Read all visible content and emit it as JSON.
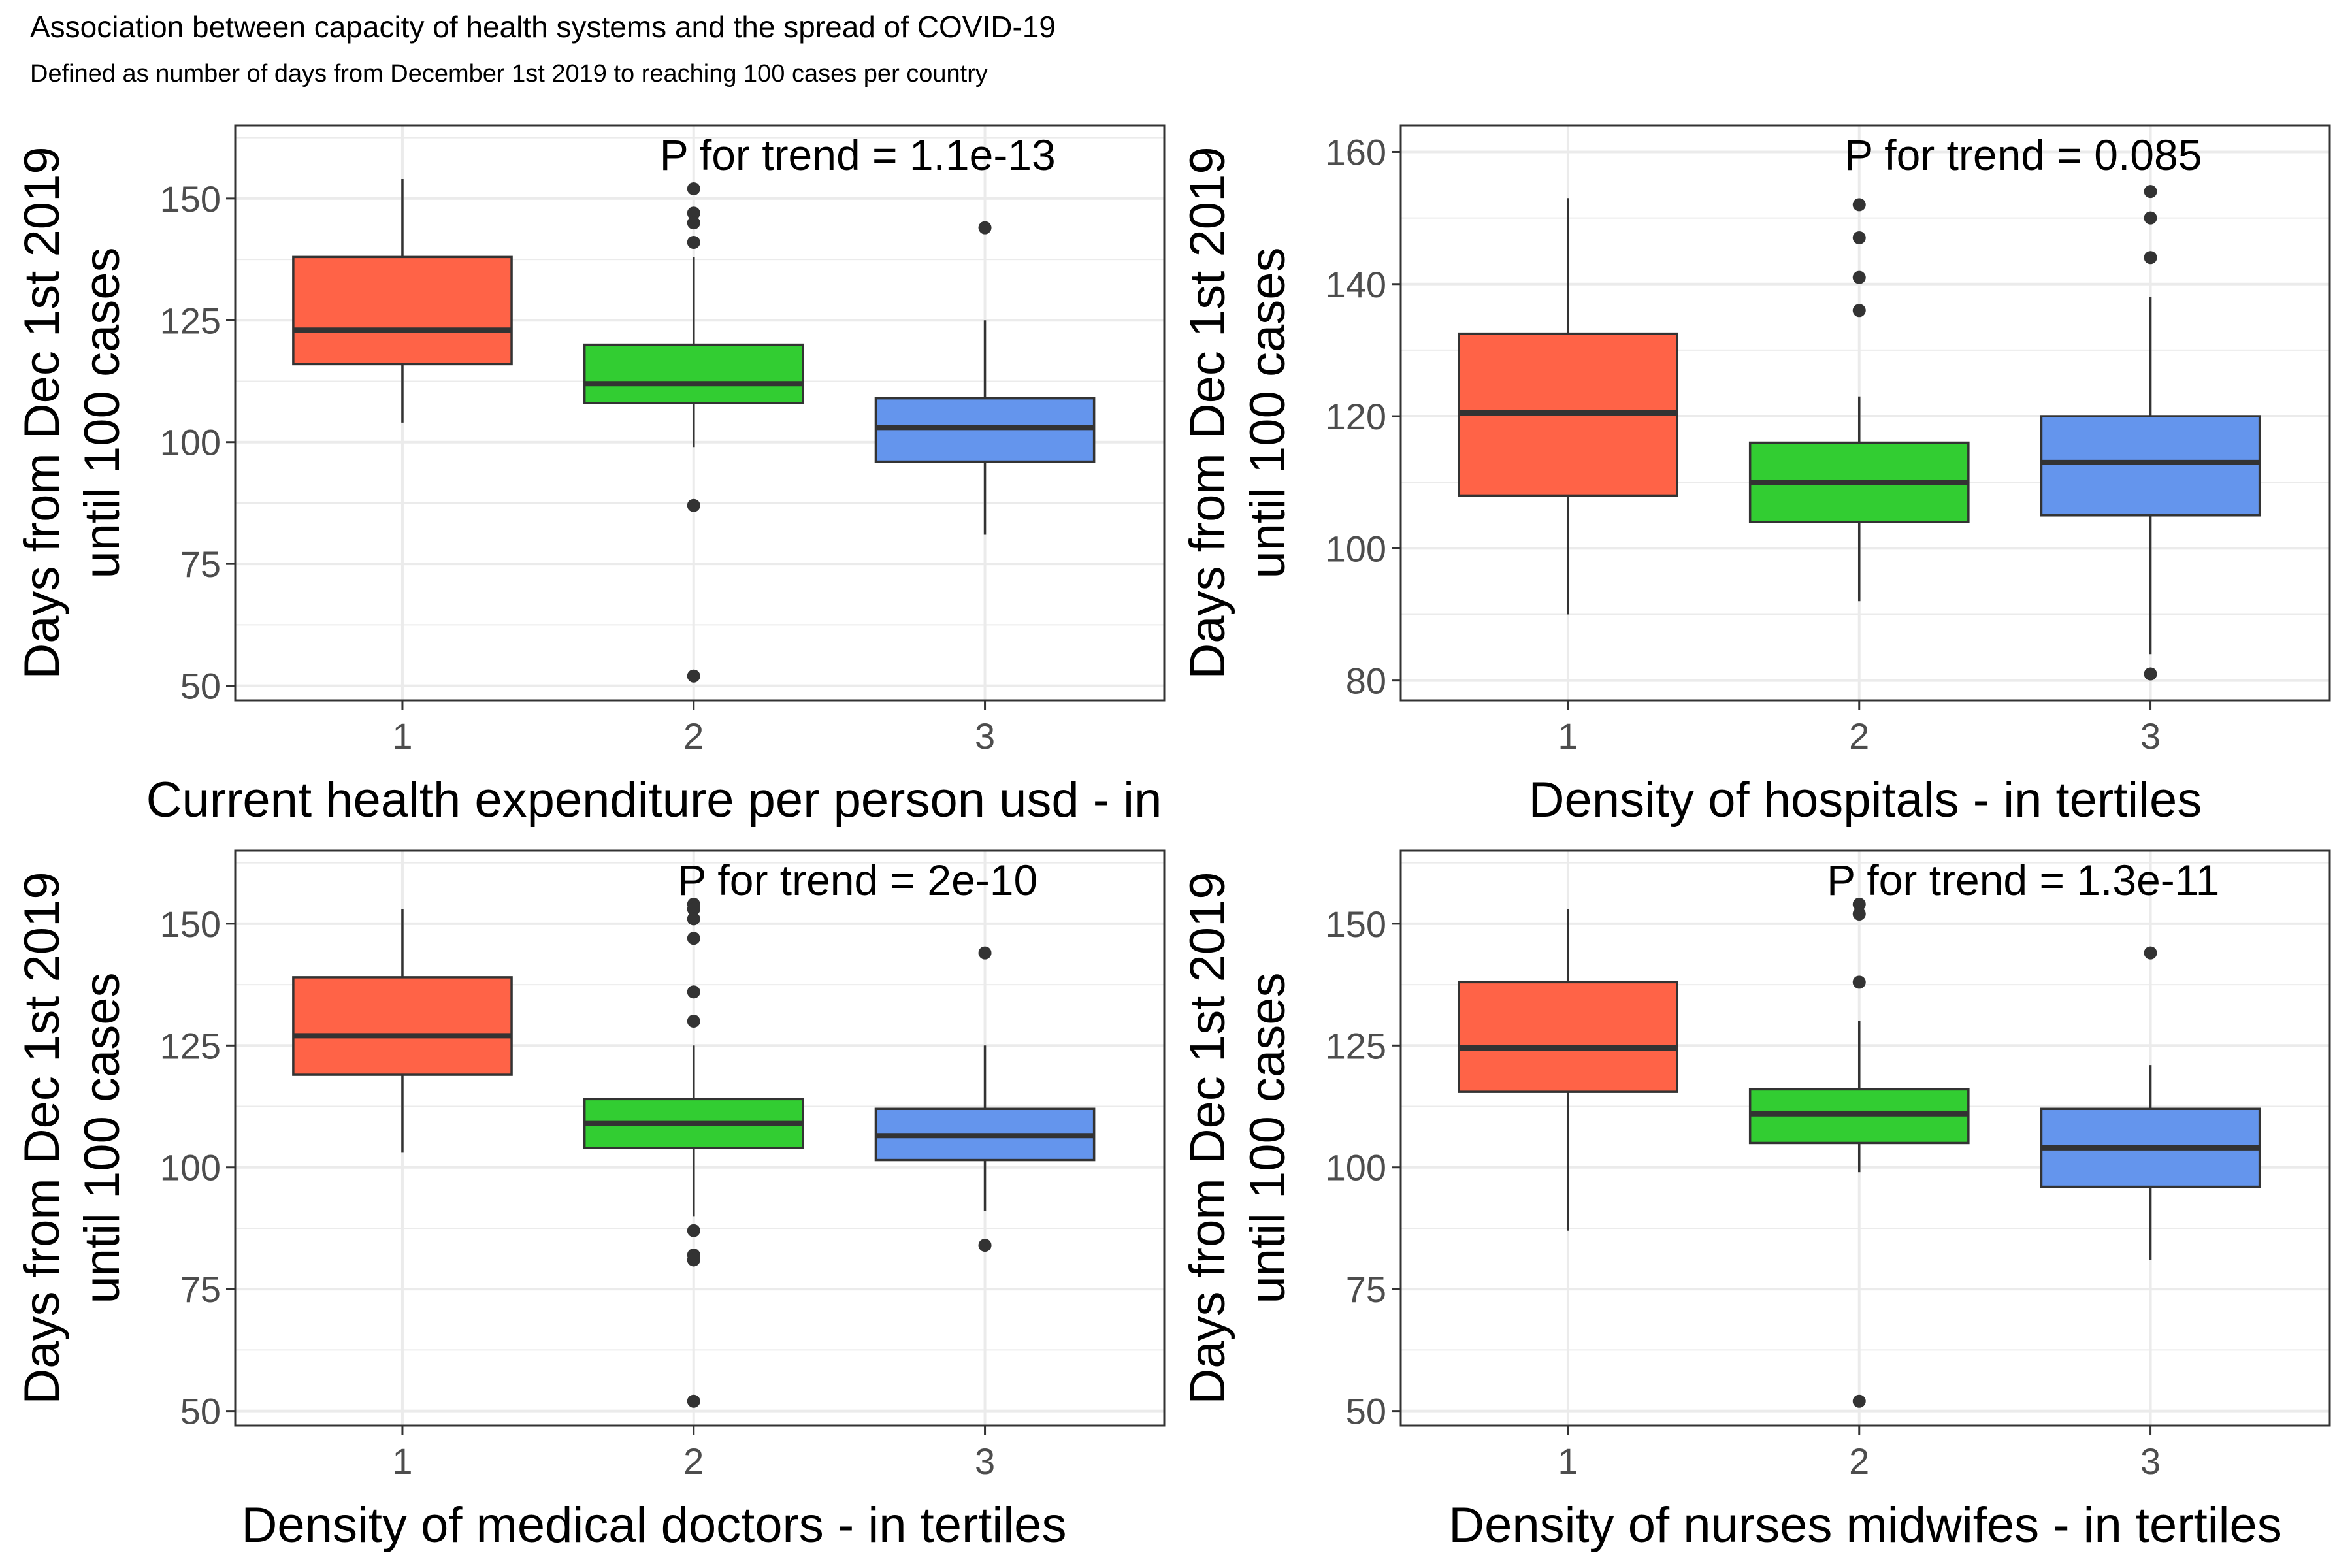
{
  "title": "Association between capacity of health systems and the spread of COVID-19",
  "subtitle": "Defined as number of days from December 1st 2019 to reaching 100 cases per country",
  "colors": {
    "tertile_1": "#FF6347",
    "tertile_2": "#32CD32",
    "tertile_3": "#6495ED",
    "box_line": "#333333",
    "grid": "#EBEBEB",
    "panel_border": "#333333"
  },
  "chart_data": [
    {
      "type": "boxplot",
      "annotation": "P for trend = 1.1e-13",
      "xlabel": "Current health expenditure per person usd - in",
      "ylabel_line1": "Days from Dec 1st 2019",
      "ylabel_line2": "until 100 cases",
      "categories": [
        "1",
        "2",
        "3"
      ],
      "ylim": [
        47,
        165
      ],
      "yticks": [
        50,
        75,
        100,
        125,
        150
      ],
      "grid": true,
      "boxes": [
        {
          "q1": 116,
          "median": 123,
          "q3": 138,
          "whisker_low": 104,
          "whisker_high": 154,
          "outliers": []
        },
        {
          "q1": 108,
          "median": 112,
          "q3": 120,
          "whisker_low": 99,
          "whisker_high": 138,
          "outliers": [
            152,
            147,
            145,
            141,
            87,
            52
          ]
        },
        {
          "q1": 96,
          "median": 103,
          "q3": 109,
          "whisker_low": 81,
          "whisker_high": 125,
          "outliers": [
            144
          ]
        }
      ]
    },
    {
      "type": "boxplot",
      "annotation": "P for trend = 0.085",
      "xlabel": "Density of hospitals - in tertiles",
      "ylabel_line1": "Days from Dec 1st 2019",
      "ylabel_line2": "until 100 cases",
      "categories": [
        "1",
        "2",
        "3"
      ],
      "ylim": [
        77,
        164
      ],
      "yticks": [
        80,
        100,
        120,
        140,
        160
      ],
      "grid": true,
      "boxes": [
        {
          "q1": 108,
          "median": 120.5,
          "q3": 132.5,
          "whisker_low": 90,
          "whisker_high": 153,
          "outliers": []
        },
        {
          "q1": 104,
          "median": 110,
          "q3": 116,
          "whisker_low": 92,
          "whisker_high": 123,
          "outliers": [
            152,
            147,
            141,
            136
          ]
        },
        {
          "q1": 105,
          "median": 113,
          "q3": 120,
          "whisker_low": 84,
          "whisker_high": 138,
          "outliers": [
            154,
            150,
            144,
            81
          ]
        }
      ]
    },
    {
      "type": "boxplot",
      "annotation": "P for trend = 2e-10",
      "xlabel": "Density of medical doctors - in tertiles",
      "ylabel_line1": "Days from Dec 1st 2019",
      "ylabel_line2": "until 100 cases",
      "categories": [
        "1",
        "2",
        "3"
      ],
      "ylim": [
        47,
        165
      ],
      "yticks": [
        50,
        75,
        100,
        125,
        150
      ],
      "grid": true,
      "boxes": [
        {
          "q1": 119,
          "median": 127,
          "q3": 139,
          "whisker_low": 103,
          "whisker_high": 153,
          "outliers": []
        },
        {
          "q1": 104,
          "median": 109,
          "q3": 114,
          "whisker_low": 90,
          "whisker_high": 125,
          "outliers": [
            154,
            153,
            151,
            147,
            136,
            130,
            87,
            82,
            81,
            52
          ]
        },
        {
          "q1": 101.5,
          "median": 106.5,
          "q3": 112,
          "whisker_low": 91,
          "whisker_high": 125,
          "outliers": [
            144,
            84
          ]
        }
      ]
    },
    {
      "type": "boxplot",
      "annotation": "P for trend = 1.3e-11",
      "xlabel": "Density of nurses midwifes - in tertiles",
      "ylabel_line1": "Days from Dec 1st 2019",
      "ylabel_line2": "until 100 cases",
      "categories": [
        "1",
        "2",
        "3"
      ],
      "ylim": [
        47,
        165
      ],
      "yticks": [
        50,
        75,
        100,
        125,
        150
      ],
      "grid": true,
      "boxes": [
        {
          "q1": 115.5,
          "median": 124.5,
          "q3": 138,
          "whisker_low": 87,
          "whisker_high": 153,
          "outliers": []
        },
        {
          "q1": 105,
          "median": 111,
          "q3": 116,
          "whisker_low": 99,
          "whisker_high": 130,
          "outliers": [
            154,
            152,
            138,
            52
          ]
        },
        {
          "q1": 96,
          "median": 104,
          "q3": 112,
          "whisker_low": 81,
          "whisker_high": 121,
          "outliers": [
            144
          ]
        }
      ]
    }
  ]
}
